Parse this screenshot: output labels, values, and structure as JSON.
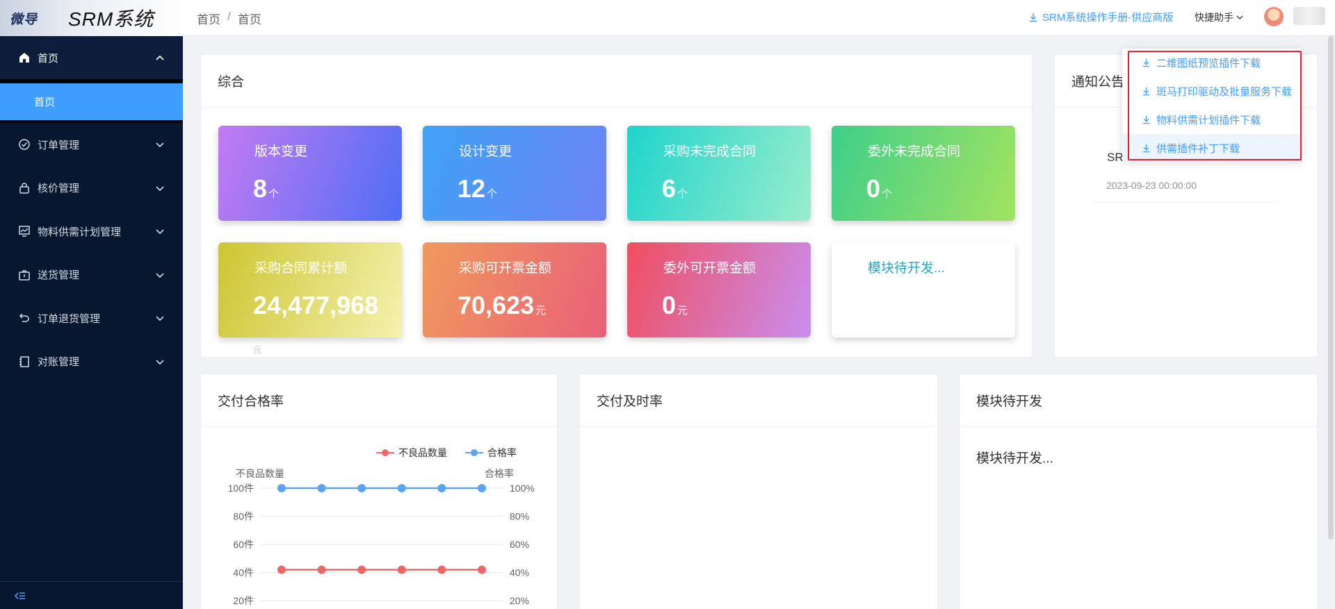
{
  "logo": {
    "mark": "微导",
    "title": "SRM系统"
  },
  "sidebar": {
    "home": "首页",
    "home_sub": "首页",
    "items": [
      {
        "label": "订单管理",
        "icon": "check-circle-icon"
      },
      {
        "label": "核价管理",
        "icon": "lock-icon"
      },
      {
        "label": "物料供需计划管理",
        "icon": "chart-icon"
      },
      {
        "label": "送货管理",
        "icon": "box-icon"
      },
      {
        "label": "订单退货管理",
        "icon": "return-icon"
      },
      {
        "label": "对账管理",
        "icon": "notebook-icon"
      }
    ]
  },
  "header": {
    "breadcrumb": [
      "首页",
      "首页"
    ],
    "manual": "SRM系统操作手册-供应商版",
    "quick": "快捷助手"
  },
  "dropdown": {
    "items": [
      "二维图纸预览插件下载",
      "斑马打印驱动及批量服务下载",
      "物料供需计划插件下载",
      "供需插件补丁下载"
    ]
  },
  "overview": {
    "title": "综合",
    "cards": [
      {
        "title": "版本变更",
        "value": "8",
        "unit": "个"
      },
      {
        "title": "设计变更",
        "value": "12",
        "unit": "个"
      },
      {
        "title": "采购未完成合同",
        "value": "6",
        "unit": "个"
      },
      {
        "title": "委外未完成合同",
        "value": "0",
        "unit": "个"
      },
      {
        "title": "采购合同累计额",
        "value": "24,477,968",
        "unit": "元"
      },
      {
        "title": "采购可开票金额",
        "value": "70,623",
        "unit": "元"
      },
      {
        "title": "委外可开票金额",
        "value": "0",
        "unit": "元"
      },
      {
        "title": "模块待开发...",
        "value": "",
        "unit": ""
      }
    ]
  },
  "notice": {
    "title": "通知公告",
    "item": "SR",
    "date": "2023-09-23 00:00:00"
  },
  "panels": {
    "delivery_quality": "交付合格率",
    "delivery_ontime": "交付及时率",
    "pending": "模块待开发",
    "pending_text": "模块待开发..."
  },
  "chart_data": {
    "type": "line",
    "title": "",
    "legend_position": "top-right",
    "y_left_label": "不良品数量",
    "y_right_label": "合格率",
    "y_left_ticks": [
      "100件",
      "80件",
      "60件",
      "40件",
      "20件"
    ],
    "y_right_ticks": [
      "100%",
      "80%",
      "60%",
      "40%",
      "20%"
    ],
    "ylim": [
      0,
      100
    ],
    "series": [
      {
        "name": "不良品数量",
        "color": "#ee6666",
        "values": [
          42,
          42,
          42,
          42,
          42,
          42
        ]
      },
      {
        "name": "合格率",
        "color": "#5aa3f5",
        "values": [
          100,
          100,
          100,
          100,
          100,
          100
        ]
      }
    ]
  }
}
